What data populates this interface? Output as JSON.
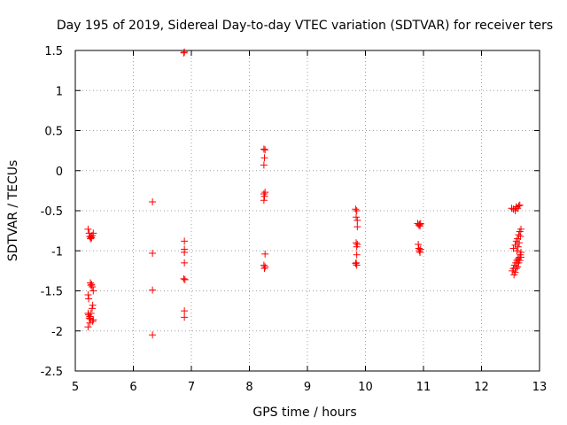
{
  "chart_data": {
    "type": "scatter",
    "title": "Day 195 of 2019, Sidereal Day-to-day VTEC variation (SDTVAR) for receiver ters",
    "xlabel": "GPS time / hours",
    "ylabel": "SDTVAR / TECUs",
    "xlim": [
      5,
      13
    ],
    "ylim": [
      -2.5,
      1.5
    ],
    "x_ticks": [
      5,
      6,
      7,
      8,
      9,
      10,
      11,
      12,
      13
    ],
    "x_tick_labels": [
      "5",
      "6",
      "7",
      "8",
      "9",
      "10",
      "11",
      "12",
      "13"
    ],
    "y_ticks": [
      1.5,
      1,
      0.5,
      0,
      -0.5,
      -1,
      -1.5,
      -2,
      -2.5
    ],
    "y_tick_labels": [
      "1.5",
      "1",
      "0.5",
      "0",
      "-0.5",
      "-1",
      "-1.5",
      "-2",
      "-2.5"
    ],
    "grid": true,
    "marker": "plus",
    "series": [
      {
        "name": "SDTVAR",
        "color": "#ff0000",
        "points": [
          [
            5.22,
            -0.73
          ],
          [
            5.24,
            -0.78
          ],
          [
            5.25,
            -0.82
          ],
          [
            5.26,
            -0.85
          ],
          [
            5.27,
            -0.83
          ],
          [
            5.28,
            -0.84
          ],
          [
            5.29,
            -0.81
          ],
          [
            5.31,
            -0.78
          ],
          [
            5.22,
            -1.55
          ],
          [
            5.23,
            -1.6
          ],
          [
            5.26,
            -1.4
          ],
          [
            5.27,
            -1.43
          ],
          [
            5.28,
            -1.42
          ],
          [
            5.29,
            -1.45
          ],
          [
            5.31,
            -1.5
          ],
          [
            5.22,
            -1.78
          ],
          [
            5.23,
            -1.8
          ],
          [
            5.24,
            -1.84
          ],
          [
            5.25,
            -1.82
          ],
          [
            5.26,
            -1.85
          ],
          [
            5.27,
            -1.78
          ],
          [
            5.29,
            -1.72
          ],
          [
            5.3,
            -1.68
          ],
          [
            5.31,
            -1.86
          ],
          [
            5.3,
            -1.88
          ],
          [
            5.22,
            -1.95
          ],
          [
            5.25,
            -1.9
          ],
          [
            6.33,
            -0.39
          ],
          [
            6.33,
            -1.03
          ],
          [
            6.33,
            -1.49
          ],
          [
            6.33,
            -2.05
          ],
          [
            6.88,
            1.48
          ],
          [
            6.87,
            1.47
          ],
          [
            6.88,
            -0.88
          ],
          [
            6.88,
            -0.98
          ],
          [
            6.88,
            -1.02
          ],
          [
            6.88,
            -1.15
          ],
          [
            6.87,
            -1.35
          ],
          [
            6.89,
            -1.36
          ],
          [
            6.88,
            -1.75
          ],
          [
            6.88,
            -1.83
          ],
          [
            8.25,
            0.27
          ],
          [
            8.27,
            0.26
          ],
          [
            8.26,
            0.16
          ],
          [
            8.25,
            0.07
          ],
          [
            8.25,
            -0.29
          ],
          [
            8.27,
            -0.27
          ],
          [
            8.26,
            -0.32
          ],
          [
            8.25,
            -0.37
          ],
          [
            8.27,
            -1.04
          ],
          [
            8.25,
            -1.18
          ],
          [
            8.27,
            -1.2
          ],
          [
            8.26,
            -1.22
          ],
          [
            9.83,
            -0.48
          ],
          [
            9.85,
            -0.5
          ],
          [
            9.84,
            -0.58
          ],
          [
            9.86,
            -0.62
          ],
          [
            9.86,
            -0.7
          ],
          [
            9.84,
            -0.9
          ],
          [
            9.86,
            -0.92
          ],
          [
            9.85,
            -0.95
          ],
          [
            9.85,
            -1.05
          ],
          [
            9.84,
            -1.15
          ],
          [
            9.85,
            -1.18
          ],
          [
            9.83,
            -1.16
          ],
          [
            10.9,
            -0.66
          ],
          [
            10.92,
            -0.68
          ],
          [
            10.93,
            -0.67
          ],
          [
            10.94,
            -0.69
          ],
          [
            10.95,
            -0.66
          ],
          [
            10.91,
            -0.92
          ],
          [
            10.92,
            -0.97
          ],
          [
            10.93,
            -1.0
          ],
          [
            10.94,
            -1.02
          ],
          [
            10.95,
            -0.98
          ],
          [
            12.52,
            -0.47
          ],
          [
            12.55,
            -0.48
          ],
          [
            12.58,
            -0.5
          ],
          [
            12.6,
            -0.45
          ],
          [
            12.62,
            -0.47
          ],
          [
            12.64,
            -0.44
          ],
          [
            12.66,
            -0.43
          ],
          [
            12.55,
            -0.97
          ],
          [
            12.58,
            -0.93
          ],
          [
            12.6,
            -0.88
          ],
          [
            12.62,
            -0.85
          ],
          [
            12.64,
            -0.8
          ],
          [
            12.66,
            -0.76
          ],
          [
            12.68,
            -0.73
          ],
          [
            12.67,
            -0.82
          ],
          [
            12.65,
            -0.9
          ],
          [
            12.63,
            -0.95
          ],
          [
            12.61,
            -1.0
          ],
          [
            12.53,
            -1.25
          ],
          [
            12.55,
            -1.22
          ],
          [
            12.57,
            -1.18
          ],
          [
            12.59,
            -1.15
          ],
          [
            12.61,
            -1.12
          ],
          [
            12.63,
            -1.1
          ],
          [
            12.65,
            -1.08
          ],
          [
            12.67,
            -1.05
          ],
          [
            12.68,
            -1.02
          ],
          [
            12.56,
            -1.3
          ],
          [
            12.58,
            -1.27
          ],
          [
            12.6,
            -1.22
          ],
          [
            12.62,
            -1.2
          ],
          [
            12.64,
            -1.15
          ],
          [
            12.66,
            -1.12
          ],
          [
            12.68,
            -1.08
          ]
        ]
      }
    ]
  }
}
